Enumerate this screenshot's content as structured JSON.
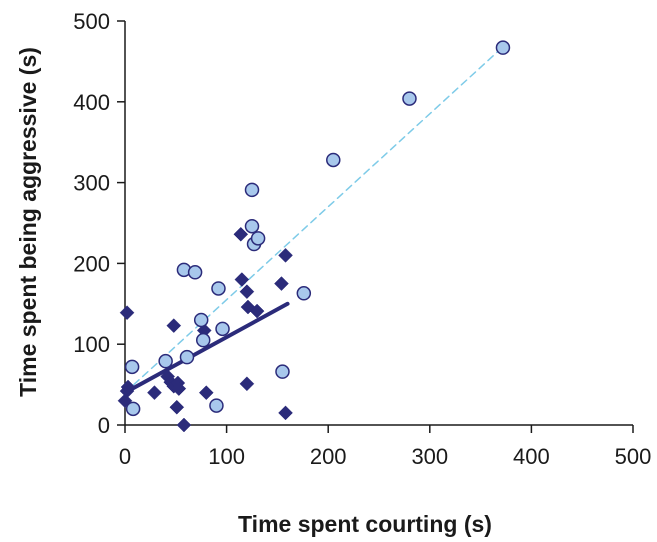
{
  "chart_data": {
    "type": "scatter",
    "title": "",
    "xlabel": "Time spent courting (s)",
    "ylabel": "Time spent being aggressive (s)",
    "xlim": [
      0,
      500
    ],
    "ylim": [
      0,
      500
    ],
    "x_ticks": [
      "0",
      "100",
      "200",
      "300",
      "400",
      "500"
    ],
    "y_ticks": [
      "0",
      "100",
      "200",
      "300",
      "400",
      "500"
    ],
    "grid": false,
    "legend": "none",
    "series": [
      {
        "marker": "diamond",
        "color": "#2b2b7a",
        "points": [
          [
            2,
            139
          ],
          [
            2,
            42
          ],
          [
            3,
            47
          ],
          [
            0,
            30
          ],
          [
            48,
            123
          ],
          [
            29,
            40
          ],
          [
            42,
            60
          ],
          [
            45,
            53
          ],
          [
            48,
            48
          ],
          [
            52,
            52
          ],
          [
            53,
            45
          ],
          [
            51,
            22
          ],
          [
            58,
            0
          ],
          [
            78,
            117
          ],
          [
            80,
            40
          ],
          [
            114,
            236
          ],
          [
            115,
            180
          ],
          [
            120,
            165
          ],
          [
            121,
            146
          ],
          [
            130,
            141
          ],
          [
            120,
            51
          ],
          [
            154,
            175
          ],
          [
            158,
            210
          ],
          [
            158,
            15
          ]
        ],
        "trendline": {
          "x": [
            0,
            160
          ],
          "y": [
            40,
            150
          ],
          "style": "solid",
          "color": "#2b2b7a"
        }
      },
      {
        "marker": "circle",
        "color": "#a8c8ec",
        "points": [
          [
            7,
            72
          ],
          [
            8,
            20
          ],
          [
            40,
            79
          ],
          [
            58,
            192
          ],
          [
            61,
            84
          ],
          [
            69,
            189
          ],
          [
            75,
            130
          ],
          [
            77,
            105
          ],
          [
            90,
            24
          ],
          [
            92,
            169
          ],
          [
            96,
            119
          ],
          [
            125,
            291
          ],
          [
            125,
            246
          ],
          [
            127,
            224
          ],
          [
            131,
            231
          ],
          [
            155,
            66
          ],
          [
            176,
            163
          ],
          [
            205,
            328
          ],
          [
            280,
            404
          ],
          [
            372,
            467
          ]
        ],
        "trendline": {
          "x": [
            0,
            372
          ],
          "y": [
            40,
            468
          ],
          "style": "dashed",
          "color": "#7ecbe8"
        }
      }
    ]
  }
}
